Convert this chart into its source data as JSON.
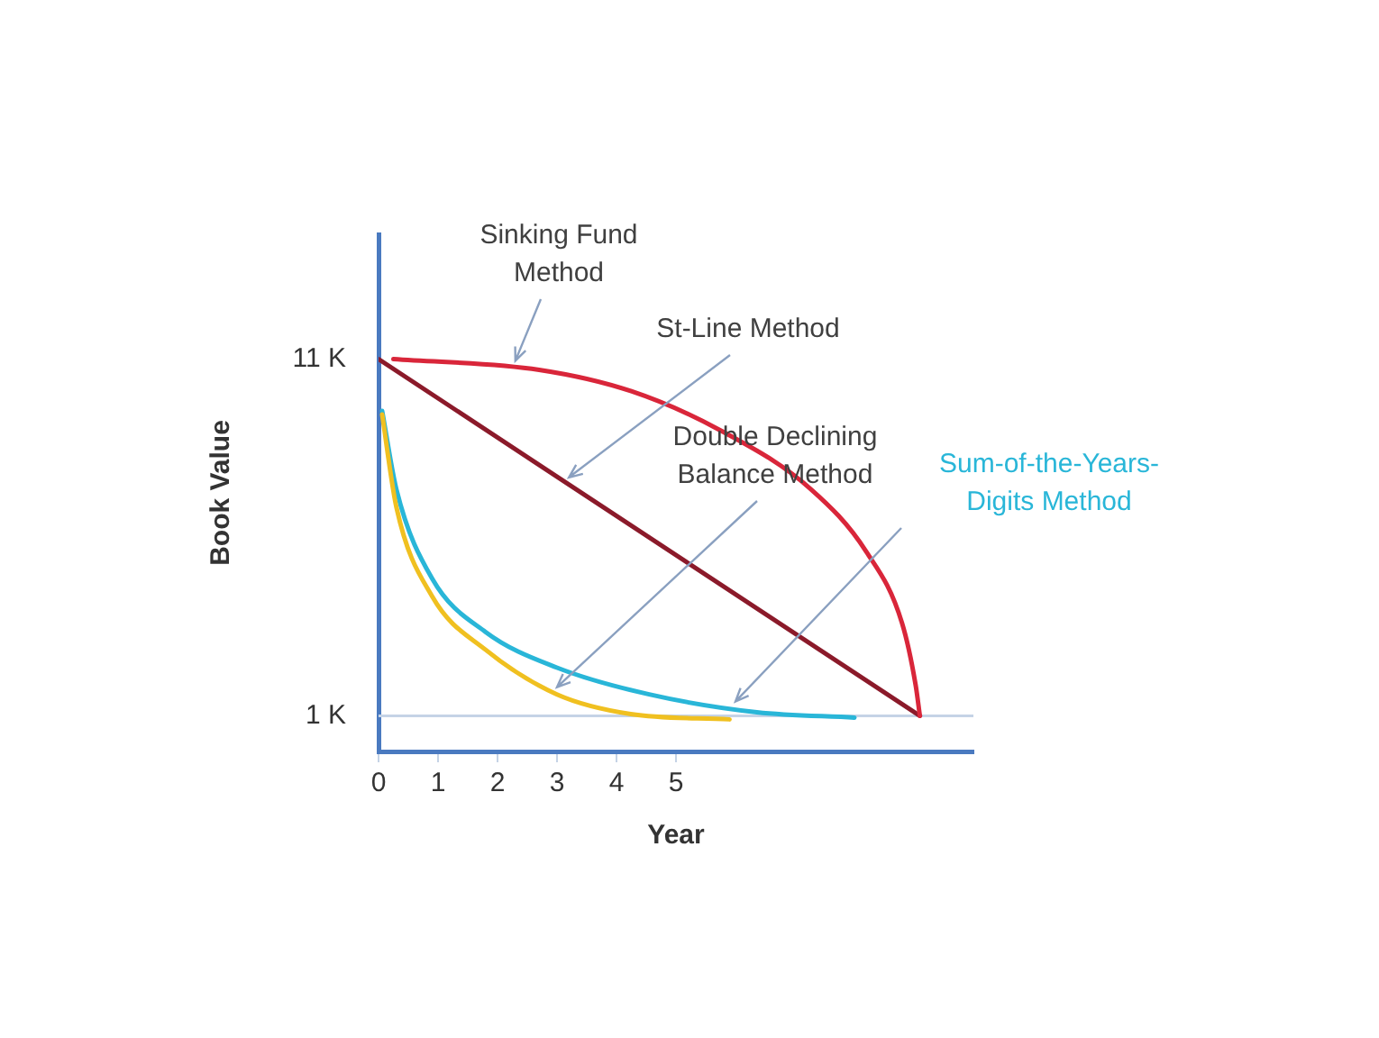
{
  "chart_data": {
    "type": "line",
    "xlabel": "Year",
    "ylabel": "Book Value",
    "xlim": [
      0,
      10
    ],
    "xticks": [
      0,
      1,
      2,
      3,
      4,
      5
    ],
    "ylim": [
      0,
      14.5
    ],
    "yticks": [
      {
        "value": 1,
        "label": "1 K"
      },
      {
        "value": 11,
        "label": "11 K"
      }
    ],
    "grid": false,
    "legend": false,
    "marker": "none",
    "line_style": "solid",
    "ref_lines": [
      {
        "axis": "y",
        "value": 1,
        "color": "#c5d3e6"
      }
    ],
    "series": [
      {
        "name": "Sinking Fund Method",
        "color": "#d9263a",
        "x": [
          0.25,
          2.7,
          4.25,
          5.75,
          7.27,
          8.2,
          8.8,
          9.03,
          9.1
        ],
        "values": [
          11,
          10.7,
          10.1,
          9.0,
          7.35,
          5.6,
          3.6,
          1.85,
          1
        ]
      },
      {
        "name": "St-Line Method",
        "color": "#8b1a2a",
        "x": [
          0,
          9.1
        ],
        "values": [
          11,
          1
        ]
      },
      {
        "name": "Double Declining Balance Method",
        "color": "#f0c020",
        "x": [
          0.06,
          0.3,
          0.9,
          1.8,
          3.0,
          4.24,
          5.9
        ],
        "values": [
          9.45,
          6.85,
          4.35,
          2.85,
          1.6,
          1.05,
          0.9
        ]
      },
      {
        "name": "Sum-of-the-Years-Digits Method",
        "color": "#29b6d8",
        "x": [
          0.06,
          0.3,
          0.9,
          1.8,
          3.0,
          4.55,
          6.36,
          8.0
        ],
        "values": [
          9.55,
          7.35,
          4.85,
          3.35,
          2.35,
          1.6,
          1.1,
          0.95
        ]
      }
    ]
  }
}
